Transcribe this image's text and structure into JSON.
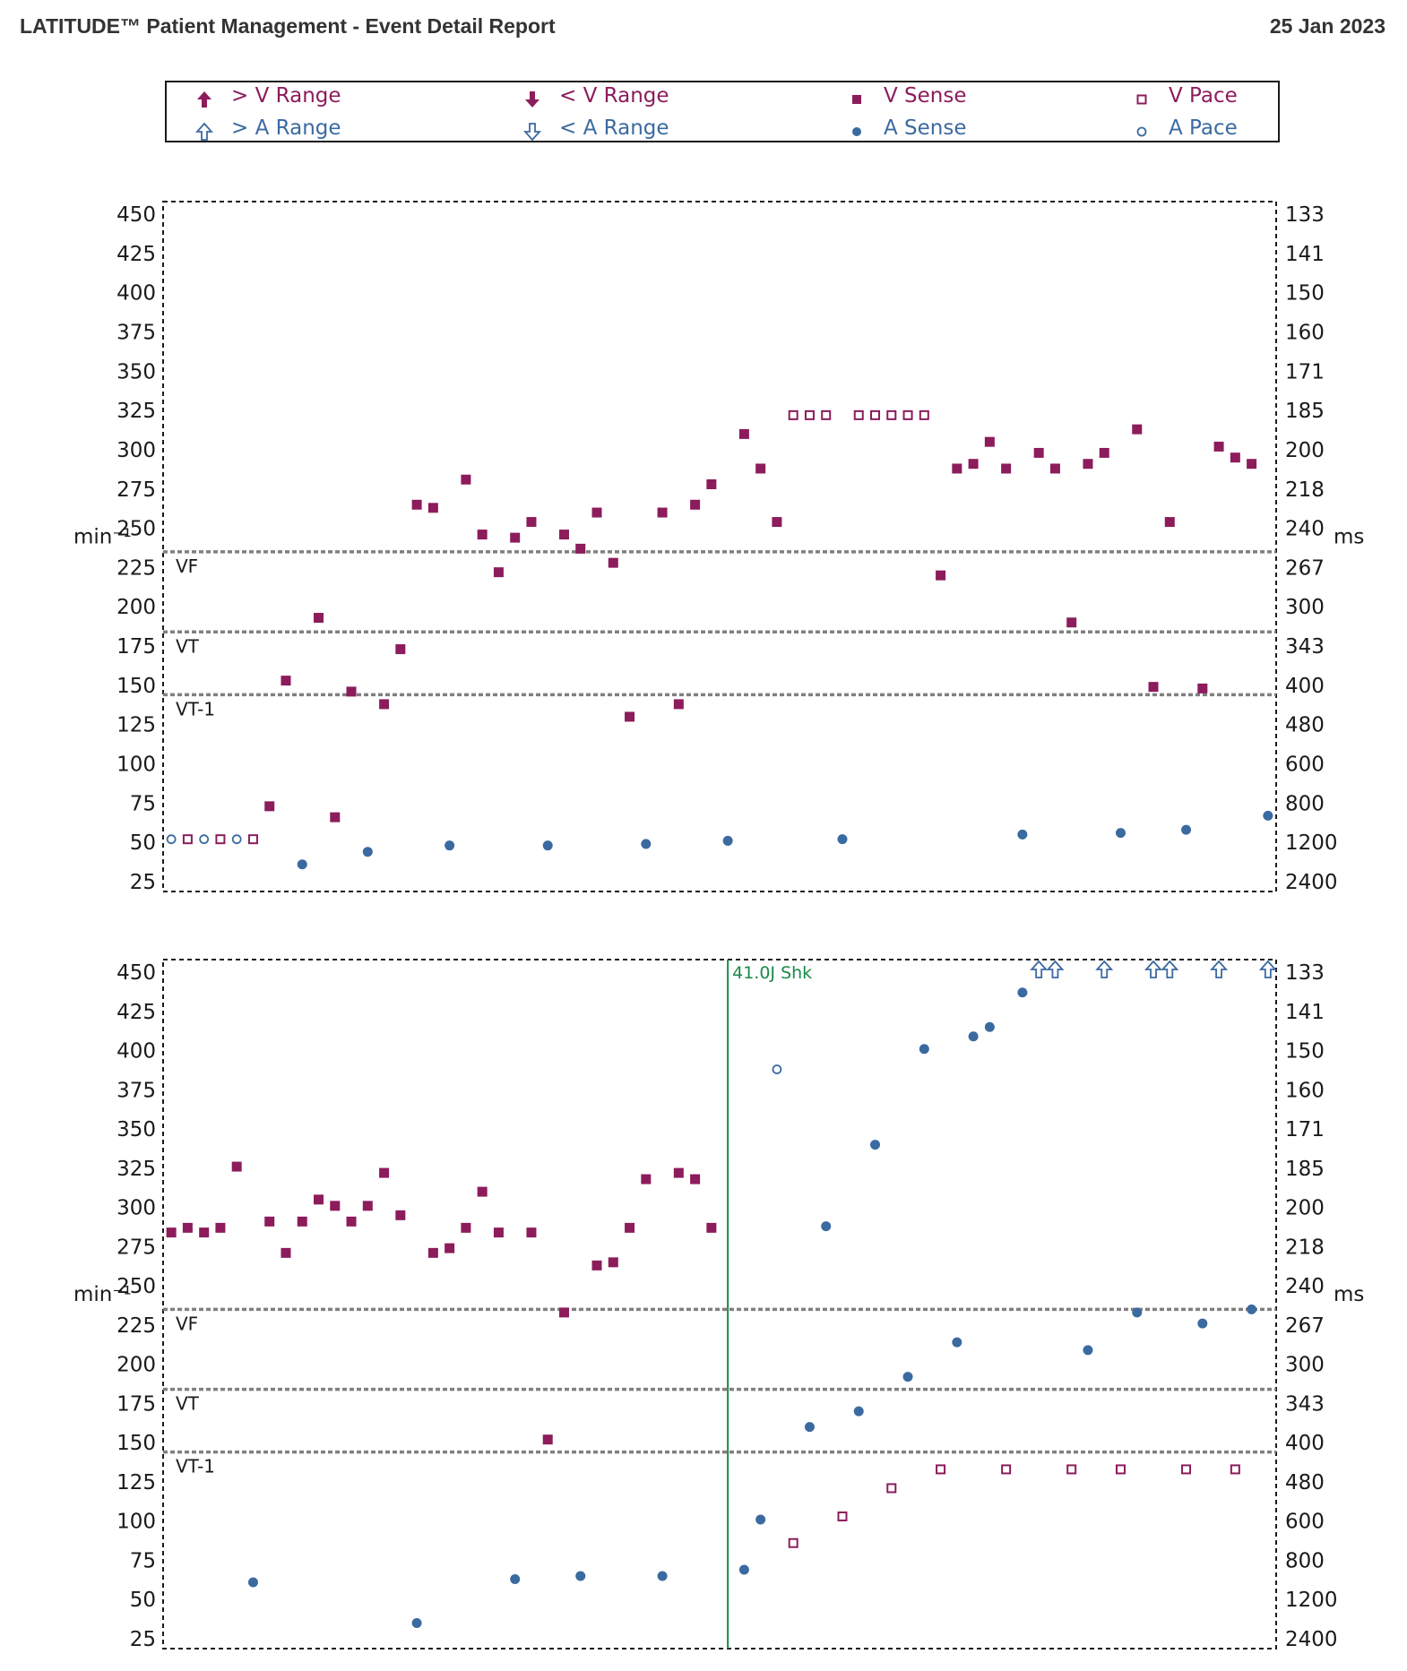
{
  "header": {
    "title": "LATITUDE™ Patient Management - Event Detail Report",
    "date": "25 Jan 2023"
  },
  "colors": {
    "ventricular": "#8c1c5c",
    "atrial": "#3b6aa0",
    "shock": "#1a8a4a",
    "threshold": "#808080"
  },
  "legend": [
    {
      "key": "v_high",
      "label": "> V Range",
      "symbol": "filled-up-arrow",
      "color": "#8c1c5c"
    },
    {
      "key": "v_low",
      "label": "< V Range",
      "symbol": "filled-down-arrow",
      "color": "#8c1c5c"
    },
    {
      "key": "v_sense",
      "label": "V Sense",
      "symbol": "filled-square",
      "color": "#8c1c5c"
    },
    {
      "key": "v_pace",
      "label": "V Pace",
      "symbol": "open-square",
      "color": "#8c1c5c"
    },
    {
      "key": "a_high",
      "label": "> A Range",
      "symbol": "open-up-arrow",
      "color": "#3b6aa0"
    },
    {
      "key": "a_low",
      "label": "< A Range",
      "symbol": "open-down-arrow",
      "color": "#3b6aa0"
    },
    {
      "key": "a_sense",
      "label": "A Sense",
      "symbol": "filled-circle",
      "color": "#3b6aa0"
    },
    {
      "key": "a_pace",
      "label": "A Pace",
      "symbol": "open-circle",
      "color": "#3b6aa0"
    }
  ],
  "chart_data": [
    {
      "type": "scatter",
      "panel": "top",
      "ylabel_left": "min⁻¹",
      "ylabel_right": "ms",
      "ylim": [
        25,
        450
      ],
      "x_range": [
        0,
        68
      ],
      "yticks_left": [
        450,
        425,
        400,
        375,
        350,
        325,
        300,
        275,
        250,
        225,
        200,
        175,
        150,
        125,
        100,
        75,
        50,
        25
      ],
      "yticks_right": [
        "133",
        "141",
        "150",
        "160",
        "171",
        "185",
        "200",
        "218",
        "240",
        "267",
        "300",
        "343",
        "400",
        "480",
        "600",
        "800",
        "1200",
        "2400"
      ],
      "zones": [
        {
          "name": "VF",
          "rate": 235
        },
        {
          "name": "VT",
          "rate": 184
        },
        {
          "name": "VT-1",
          "rate": 144
        }
      ],
      "series": {
        "v_sense": [
          [
            6.5,
            73
          ],
          [
            7.5,
            153
          ],
          [
            9.5,
            193
          ],
          [
            10.5,
            66
          ],
          [
            11.5,
            146
          ],
          [
            13.5,
            138
          ],
          [
            14.5,
            173
          ],
          [
            15.5,
            265
          ],
          [
            16.5,
            263
          ],
          [
            18.5,
            281
          ],
          [
            19.5,
            246
          ],
          [
            20.5,
            222
          ],
          [
            21.5,
            244
          ],
          [
            22.5,
            254
          ],
          [
            24.5,
            246
          ],
          [
            25.5,
            237
          ],
          [
            26.5,
            260
          ],
          [
            27.5,
            228
          ],
          [
            28.5,
            130
          ],
          [
            30.5,
            260
          ],
          [
            31.5,
            138
          ],
          [
            32.5,
            265
          ],
          [
            33.5,
            278
          ],
          [
            35.5,
            310
          ],
          [
            36.5,
            288
          ],
          [
            37.5,
            254
          ],
          [
            47.5,
            220
          ],
          [
            48.5,
            288
          ],
          [
            49.5,
            291
          ],
          [
            50.5,
            305
          ],
          [
            51.5,
            288
          ],
          [
            53.5,
            298
          ],
          [
            54.5,
            288
          ],
          [
            55.5,
            190
          ],
          [
            56.5,
            291
          ],
          [
            57.5,
            298
          ],
          [
            59.5,
            313
          ],
          [
            60.5,
            149
          ],
          [
            61.5,
            254
          ],
          [
            63.5,
            148
          ],
          [
            64.5,
            302
          ],
          [
            65.5,
            295
          ],
          [
            66.5,
            291
          ]
        ],
        "v_pace": [
          [
            1.5,
            52
          ],
          [
            3.5,
            52
          ],
          [
            5.5,
            52
          ],
          [
            38.5,
            322
          ],
          [
            39.5,
            322
          ],
          [
            40.5,
            322
          ],
          [
            42.5,
            322
          ],
          [
            43.5,
            322
          ],
          [
            44.5,
            322
          ],
          [
            45.5,
            322
          ],
          [
            46.5,
            322
          ]
        ],
        "a_sense": [
          [
            8.5,
            36
          ],
          [
            12.5,
            44
          ],
          [
            17.5,
            48
          ],
          [
            23.5,
            48
          ],
          [
            29.5,
            49
          ],
          [
            34.5,
            51
          ],
          [
            41.5,
            52
          ],
          [
            52.5,
            55
          ],
          [
            58.5,
            56
          ],
          [
            62.5,
            58
          ],
          [
            67.5,
            67
          ]
        ],
        "a_pace": [
          [
            0.5,
            52
          ],
          [
            2.5,
            52
          ],
          [
            4.5,
            52
          ]
        ],
        "a_high": [],
        "shock": []
      }
    },
    {
      "type": "scatter",
      "panel": "bottom",
      "ylabel_left": "min⁻¹",
      "ylabel_right": "ms",
      "ylim": [
        25,
        450
      ],
      "x_range": [
        0,
        68
      ],
      "yticks_left": [
        450,
        425,
        400,
        375,
        350,
        325,
        300,
        275,
        250,
        225,
        200,
        175,
        150,
        125,
        100,
        75,
        50,
        25
      ],
      "yticks_right": [
        "133",
        "141",
        "150",
        "160",
        "171",
        "185",
        "200",
        "218",
        "240",
        "267",
        "300",
        "343",
        "400",
        "480",
        "600",
        "800",
        "1200",
        "2400"
      ],
      "zones": [
        {
          "name": "VF",
          "rate": 235
        },
        {
          "name": "VT",
          "rate": 184
        },
        {
          "name": "VT-1",
          "rate": 144
        }
      ],
      "series": {
        "v_sense": [
          [
            0.5,
            284
          ],
          [
            1.5,
            287
          ],
          [
            2.5,
            284
          ],
          [
            3.5,
            287
          ],
          [
            4.5,
            326
          ],
          [
            6.5,
            291
          ],
          [
            7.5,
            271
          ],
          [
            8.5,
            291
          ],
          [
            9.5,
            305
          ],
          [
            10.5,
            301
          ],
          [
            11.5,
            291
          ],
          [
            12.5,
            301
          ],
          [
            13.5,
            322
          ],
          [
            14.5,
            295
          ],
          [
            16.5,
            271
          ],
          [
            17.5,
            274
          ],
          [
            18.5,
            287
          ],
          [
            19.5,
            310
          ],
          [
            20.5,
            284
          ],
          [
            22.5,
            284
          ],
          [
            23.5,
            152
          ],
          [
            24.5,
            233
          ],
          [
            26.5,
            263
          ],
          [
            27.5,
            265
          ],
          [
            28.5,
            287
          ],
          [
            29.5,
            318
          ],
          [
            31.5,
            322
          ],
          [
            32.5,
            318
          ],
          [
            33.5,
            287
          ]
        ],
        "v_pace": [
          [
            38.5,
            86
          ],
          [
            41.5,
            103
          ],
          [
            44.5,
            121
          ],
          [
            47.5,
            133
          ],
          [
            51.5,
            133
          ],
          [
            55.5,
            133
          ],
          [
            58.5,
            133
          ],
          [
            62.5,
            133
          ],
          [
            65.5,
            133
          ]
        ],
        "a_sense": [
          [
            5.5,
            61
          ],
          [
            15.5,
            35
          ],
          [
            21.5,
            63
          ],
          [
            25.5,
            65
          ],
          [
            30.5,
            65
          ],
          [
            35.5,
            69
          ],
          [
            36.5,
            101
          ],
          [
            39.5,
            160
          ],
          [
            40.5,
            288
          ],
          [
            42.5,
            170
          ],
          [
            43.5,
            340
          ],
          [
            45.5,
            192
          ],
          [
            46.5,
            401
          ],
          [
            48.5,
            214
          ],
          [
            49.5,
            409
          ],
          [
            50.5,
            415
          ],
          [
            52.5,
            437
          ],
          [
            56.5,
            209
          ],
          [
            59.5,
            233
          ],
          [
            63.5,
            226
          ],
          [
            66.5,
            235
          ]
        ],
        "a_pace": [
          [
            37.5,
            388
          ]
        ],
        "a_high": [
          53.5,
          54.5,
          57.5,
          60.5,
          61.5,
          64.5,
          67.5
        ],
        "shock": [
          {
            "x": 34.5,
            "label": "41.0J Shk"
          }
        ]
      }
    }
  ]
}
